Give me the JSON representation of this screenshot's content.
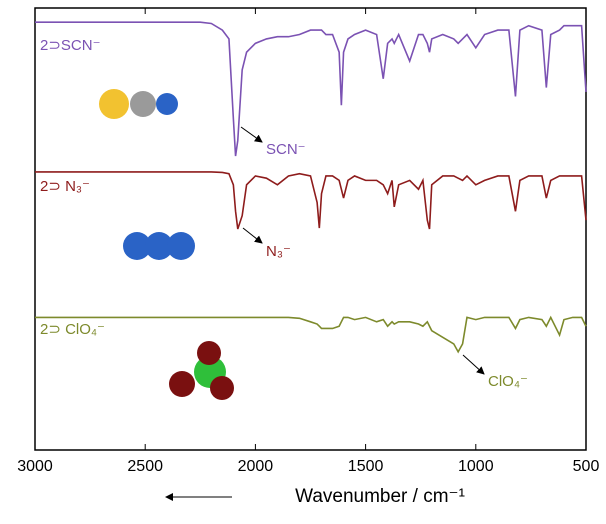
{
  "chart_data": {
    "type": "line",
    "x_label": "Wavenumber / cm⁻¹",
    "xlim": [
      3000,
      500
    ],
    "xticks": [
      3000,
      2500,
      2000,
      1500,
      1000,
      500
    ],
    "ylim": [
      0,
      100
    ],
    "x": [
      3000,
      2800,
      2600,
      2400,
      2250,
      2200,
      2150,
      2120,
      2100,
      2090,
      2080,
      2060,
      2040,
      2000,
      1950,
      1900,
      1850,
      1800,
      1750,
      1720,
      1710,
      1700,
      1680,
      1650,
      1620,
      1610,
      1600,
      1580,
      1550,
      1500,
      1450,
      1420,
      1400,
      1380,
      1370,
      1350,
      1300,
      1260,
      1240,
      1220,
      1210,
      1200,
      1150,
      1100,
      1080,
      1060,
      1040,
      1000,
      960,
      900,
      850,
      820,
      800,
      760,
      700,
      680,
      660,
      620,
      600,
      560,
      520,
      500
    ],
    "series": [
      {
        "name": "2⊃SCN⁻",
        "color": "#7b52b3",
        "values": [
          96.8,
          96.8,
          96.8,
          96.8,
          96.8,
          96.5,
          95,
          93,
          75,
          66.5,
          70,
          86,
          90,
          92,
          93,
          93.5,
          93.5,
          94,
          95,
          95,
          95,
          95,
          94,
          94,
          90,
          78,
          90,
          93,
          94,
          95,
          94,
          84,
          92,
          93,
          92,
          94,
          88,
          94,
          94,
          92,
          90,
          93,
          94,
          93,
          92,
          93,
          94,
          91,
          94,
          95,
          95,
          80,
          95,
          96,
          95,
          82,
          94,
          95,
          96,
          96,
          96,
          81
        ]
      },
      {
        "name": "2⊃ N₃⁻",
        "color": "#8e1c1c",
        "values": [
          62.9,
          62.9,
          62.9,
          62.9,
          62.9,
          62.9,
          62.8,
          62.5,
          60,
          54,
          50,
          53,
          60,
          62,
          61.5,
          60,
          62,
          62.5,
          62,
          56,
          50.2,
          58,
          62,
          62,
          61,
          59,
          57,
          61,
          62,
          61,
          61,
          60,
          58,
          61,
          55,
          60,
          61,
          59,
          61,
          52,
          50,
          60,
          62,
          62,
          61.5,
          61,
          62,
          60,
          61,
          62,
          62,
          54,
          61,
          62,
          62,
          57,
          61,
          62,
          62,
          62,
          62,
          52
        ]
      },
      {
        "name": "2⊃ ClO₄⁻",
        "color": "#7d8a2c",
        "values": [
          30,
          30,
          30,
          30,
          30,
          30,
          30,
          30,
          30,
          30,
          30,
          30,
          30,
          30,
          30,
          30,
          30,
          29.8,
          29,
          28.5,
          28,
          27.5,
          27.5,
          27.5,
          28,
          29,
          30,
          30,
          29.5,
          30,
          29,
          29.5,
          28,
          29,
          28.5,
          29,
          29,
          28.5,
          28,
          29,
          28,
          27,
          25.5,
          24,
          22.2,
          24,
          30,
          29.5,
          30,
          30,
          30,
          27.5,
          29.5,
          30,
          29.5,
          28,
          30,
          26,
          29.5,
          30,
          30,
          28
        ]
      }
    ],
    "annotations": [
      "SCN⁻",
      "N₃⁻",
      "ClO₄⁻"
    ]
  }
}
